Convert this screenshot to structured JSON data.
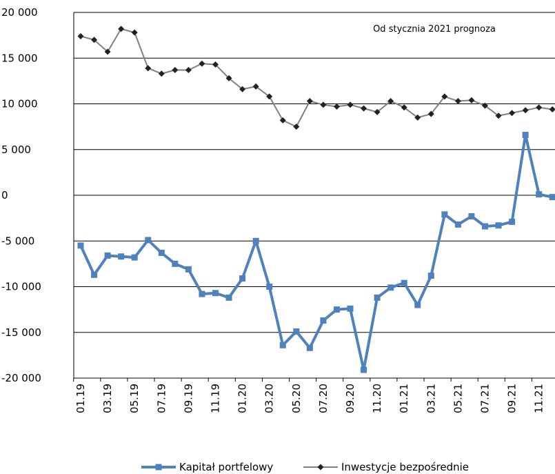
{
  "chart_data": {
    "type": "line",
    "annotation": "Od stycznia 2021 prognoza",
    "categories": [
      "01.19",
      null,
      "03.19",
      null,
      "05.19",
      null,
      "07.19",
      null,
      "09.19",
      null,
      "11.19",
      null,
      "01.20",
      null,
      "03.20",
      null,
      "05.20",
      null,
      "07.20",
      null,
      "09.20",
      null,
      "11.20",
      null,
      "01.21",
      null,
      "03.21",
      null,
      "05.21",
      null,
      "07.21",
      null,
      "09.21",
      null,
      "11.21",
      null
    ],
    "series": [
      {
        "name": "Kapitał portfelowy",
        "color": "#4f81bd",
        "marker": "square",
        "values": [
          -5500,
          -8700,
          -6600,
          -6700,
          -6800,
          -4900,
          -6300,
          -7500,
          -8100,
          -10800,
          -10700,
          -11200,
          -9100,
          -5000,
          -10000,
          -16400,
          -14900,
          -16700,
          -13700,
          -12500,
          -12400,
          -19100,
          -11200,
          -10100,
          -9600,
          -12000,
          -8800,
          -2100,
          -3200,
          -2300,
          -3400,
          -3300,
          -2900,
          6600,
          100,
          -200
        ]
      },
      {
        "name": "Inwestycje bezpośrednie",
        "color": "#808080",
        "marker": "diamond",
        "values": [
          17400,
          17000,
          15700,
          18200,
          17800,
          13900,
          13300,
          13700,
          13700,
          14400,
          14300,
          12800,
          11600,
          11900,
          10800,
          8200,
          7500,
          10300,
          9900,
          9700,
          9900,
          9500,
          9100,
          10300,
          9600,
          8500,
          8900,
          10800,
          10300,
          10400,
          9800,
          8700,
          9000,
          9300,
          9600,
          9400
        ]
      }
    ],
    "ylim": [
      -20000,
      20000
    ],
    "yticks": [
      {
        "value": -20000,
        "label": "-20 000"
      },
      {
        "value": -15000,
        "label": "-15 000"
      },
      {
        "value": -10000,
        "label": "-10 000"
      },
      {
        "value": -5000,
        "label": "-5 000"
      },
      0,
      {
        "value": 5000,
        "label": "5 000"
      },
      {
        "value": 10000,
        "label": "10 000"
      },
      {
        "value": 15000,
        "label": "15 000"
      },
      {
        "value": 20000,
        "label": "20 000"
      }
    ],
    "grid": true
  }
}
